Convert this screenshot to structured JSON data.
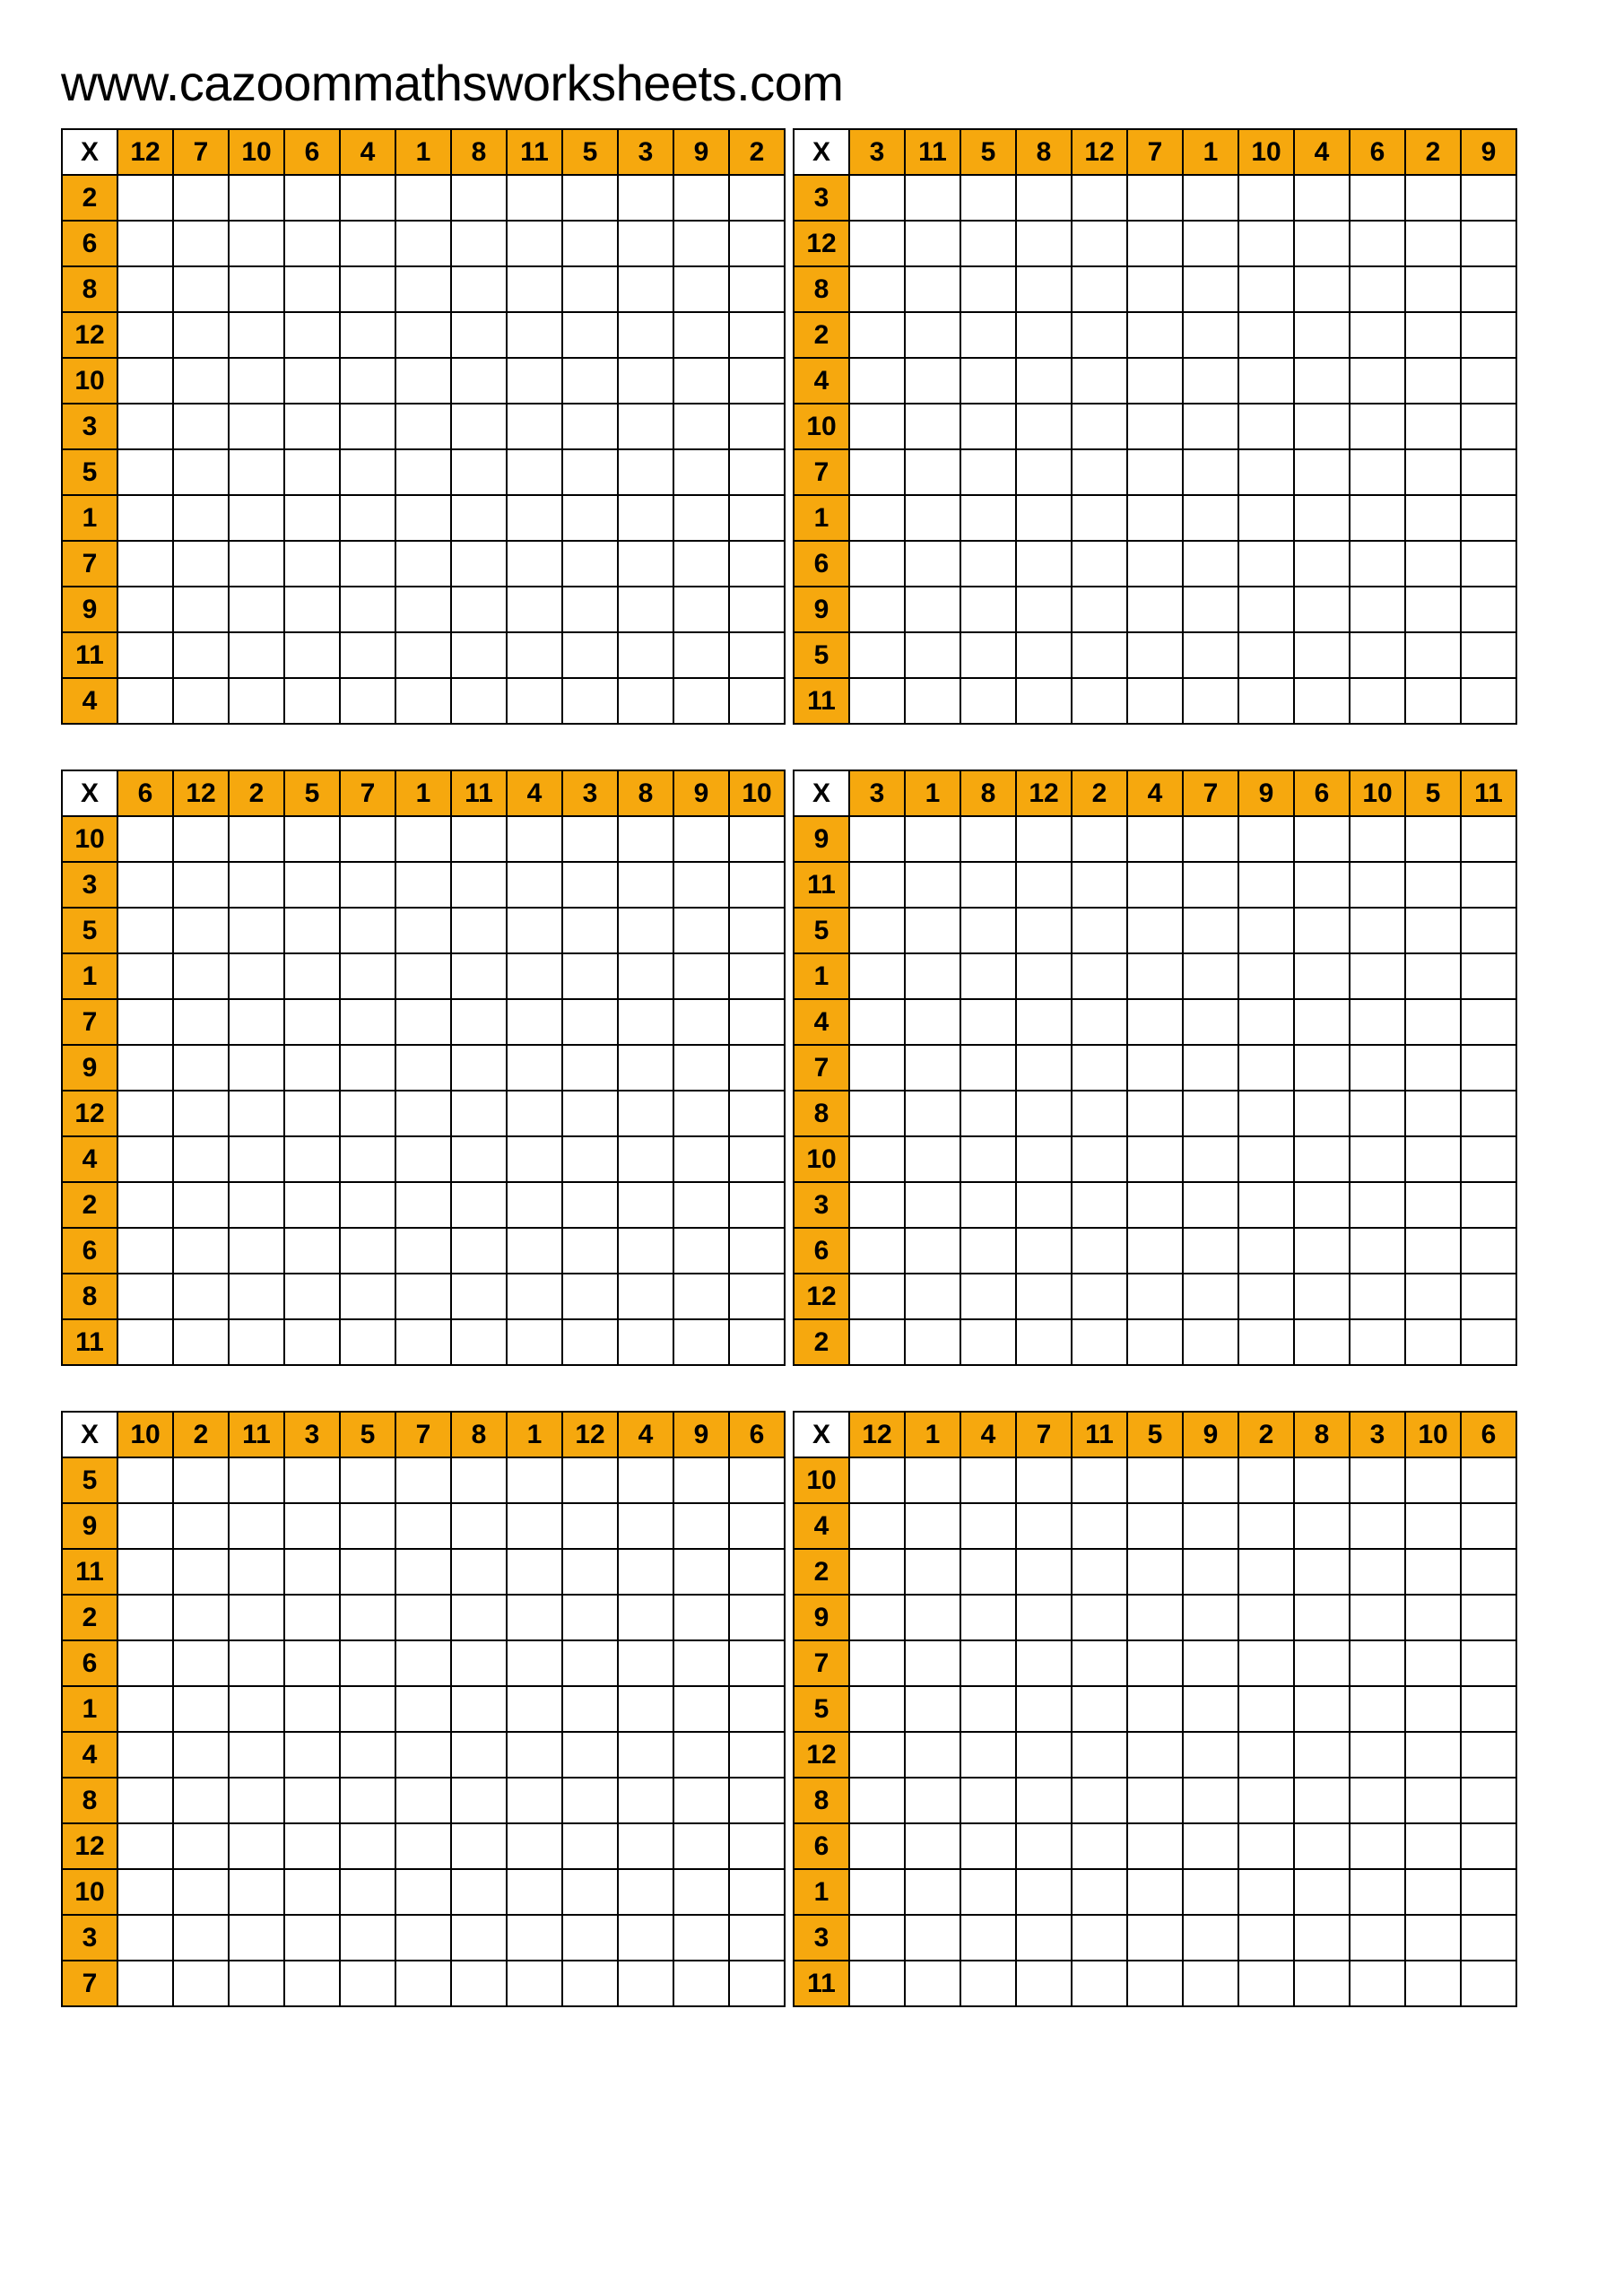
{
  "site_url": "www.cazoommathsworksheets.com",
  "corner_label": "X",
  "colors": {
    "header_bg": "#f6a80e",
    "cell_bg": "#ffffff",
    "border": "#000000",
    "text": "#000000"
  },
  "blocks": [
    {
      "left": {
        "cols": [
          12,
          7,
          10,
          6,
          4,
          1,
          8,
          11,
          5,
          3,
          9,
          2
        ],
        "rows": [
          2,
          6,
          8,
          12,
          10,
          3,
          5,
          1,
          7,
          9,
          11,
          4
        ]
      },
      "right": {
        "cols": [
          3,
          11,
          5,
          8,
          12,
          7,
          1,
          10,
          4,
          6,
          2,
          9
        ],
        "rows": [
          3,
          12,
          8,
          2,
          4,
          10,
          7,
          1,
          6,
          9,
          5,
          11
        ]
      }
    },
    {
      "left": {
        "cols": [
          6,
          12,
          2,
          5,
          7,
          1,
          11,
          4,
          3,
          8,
          9,
          10
        ],
        "rows": [
          10,
          3,
          5,
          1,
          7,
          9,
          12,
          4,
          2,
          6,
          8,
          11
        ]
      },
      "right": {
        "cols": [
          3,
          1,
          8,
          12,
          2,
          4,
          7,
          9,
          6,
          10,
          5,
          11
        ],
        "rows": [
          9,
          11,
          5,
          1,
          4,
          7,
          8,
          10,
          3,
          6,
          12,
          2
        ]
      }
    },
    {
      "left": {
        "cols": [
          10,
          2,
          11,
          3,
          5,
          7,
          8,
          1,
          12,
          4,
          9,
          6
        ],
        "rows": [
          5,
          9,
          11,
          2,
          6,
          1,
          4,
          8,
          12,
          10,
          3,
          7
        ]
      },
      "right": {
        "cols": [
          12,
          1,
          4,
          7,
          11,
          5,
          9,
          2,
          8,
          3,
          10,
          6
        ],
        "rows": [
          10,
          4,
          2,
          9,
          7,
          5,
          12,
          8,
          6,
          1,
          3,
          11
        ]
      }
    }
  ]
}
